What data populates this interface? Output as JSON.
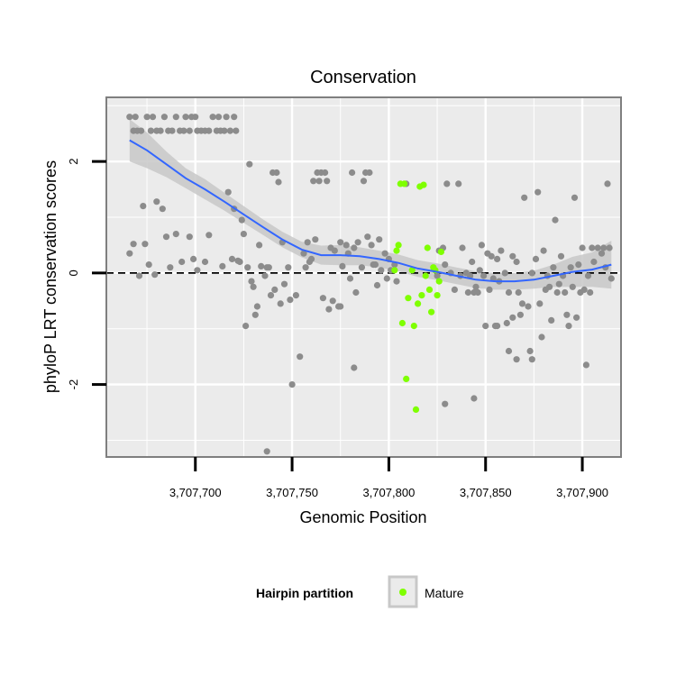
{
  "chart_data": {
    "type": "scatter",
    "title": "Conservation",
    "xlabel": "Genomic Position",
    "ylabel": "phyloP LRT conservation scores",
    "xlim": [
      3707654,
      3707920
    ],
    "ylim": [
      -3.3,
      3.15
    ],
    "x_ticks": [
      3707700,
      3707750,
      3707800,
      3707850,
      3707900
    ],
    "x_tick_labels": [
      "3,707,700",
      "3,707,750",
      "3,707,800",
      "3,707,850",
      "3,707,900"
    ],
    "y_ticks": [
      -2,
      0,
      2
    ],
    "y_tick_labels": [
      "-2",
      "0",
      "2"
    ],
    "reference_line": {
      "y": 0,
      "style": "dashed",
      "color": "#000000"
    },
    "grid": true,
    "legend": {
      "title": "Hairpin partition",
      "position": "bottom",
      "entries": [
        {
          "label": "Mature",
          "color": "#7fff00"
        }
      ]
    },
    "colors": {
      "other": "#8c8c8c",
      "mature": "#7fff00",
      "smooth": "#3366ff",
      "band": "#c8c8c8"
    },
    "series": [
      {
        "name": "Other",
        "points": [
          [
            3707666,
            2.8
          ],
          [
            3707668,
            2.55
          ],
          [
            3707669,
            2.8
          ],
          [
            3707670,
            2.55
          ],
          [
            3707672,
            2.55
          ],
          [
            3707675,
            2.8
          ],
          [
            3707677,
            2.55
          ],
          [
            3707678,
            2.8
          ],
          [
            3707680,
            2.55
          ],
          [
            3707682,
            2.55
          ],
          [
            3707684,
            2.8
          ],
          [
            3707686,
            2.55
          ],
          [
            3707688,
            2.55
          ],
          [
            3707690,
            2.8
          ],
          [
            3707692,
            2.55
          ],
          [
            3707694,
            2.55
          ],
          [
            3707695,
            2.8
          ],
          [
            3707697,
            2.55
          ],
          [
            3707698,
            2.8
          ],
          [
            3707700,
            2.8
          ],
          [
            3707701,
            2.55
          ],
          [
            3707703,
            2.55
          ],
          [
            3707705,
            2.55
          ],
          [
            3707707,
            2.55
          ],
          [
            3707709,
            2.8
          ],
          [
            3707711,
            2.55
          ],
          [
            3707712,
            2.8
          ],
          [
            3707713,
            2.55
          ],
          [
            3707715,
            2.55
          ],
          [
            3707716,
            2.8
          ],
          [
            3707718,
            2.55
          ],
          [
            3707720,
            2.8
          ],
          [
            3707721,
            2.55
          ],
          [
            3707666,
            0.35
          ],
          [
            3707668,
            0.52
          ],
          [
            3707671,
            -0.05
          ],
          [
            3707673,
            1.2
          ],
          [
            3707674,
            0.52
          ],
          [
            3707676,
            0.15
          ],
          [
            3707679,
            -0.03
          ],
          [
            3707680,
            1.28
          ],
          [
            3707683,
            1.15
          ],
          [
            3707685,
            0.65
          ],
          [
            3707687,
            0.1
          ],
          [
            3707690,
            0.7
          ],
          [
            3707693,
            0.2
          ],
          [
            3707697,
            0.65
          ],
          [
            3707699,
            0.25
          ],
          [
            3707701,
            0.05
          ],
          [
            3707705,
            0.2
          ],
          [
            3707707,
            0.68
          ],
          [
            3707714,
            0.12
          ],
          [
            3707717,
            1.45
          ],
          [
            3707719,
            0.25
          ],
          [
            3707720,
            1.15
          ],
          [
            3707722,
            0.22
          ],
          [
            3707723,
            0.2
          ],
          [
            3707724,
            0.95
          ],
          [
            3707725,
            0.7
          ],
          [
            3707726,
            -0.95
          ],
          [
            3707727,
            0.1
          ],
          [
            3707728,
            1.95
          ],
          [
            3707729,
            -0.15
          ],
          [
            3707730,
            -0.25
          ],
          [
            3707731,
            -0.75
          ],
          [
            3707732,
            -0.6
          ],
          [
            3707733,
            0.5
          ],
          [
            3707734,
            0.12
          ],
          [
            3707736,
            -0.05
          ],
          [
            3707737,
            0.1
          ],
          [
            3707738,
            0.1
          ],
          [
            3707739,
            -0.4
          ],
          [
            3707740,
            1.8
          ],
          [
            3707741,
            -0.3
          ],
          [
            3707742,
            1.8
          ],
          [
            3707743,
            1.63
          ],
          [
            3707744,
            -0.55
          ],
          [
            3707745,
            0.55
          ],
          [
            3707746,
            -0.2
          ],
          [
            3707748,
            0.1
          ],
          [
            3707749,
            -0.48
          ],
          [
            3707750,
            -2.0
          ],
          [
            3707752,
            -0.4
          ],
          [
            3707754,
            -1.5
          ],
          [
            3707756,
            0.35
          ],
          [
            3707757,
            0.1
          ],
          [
            3707758,
            0.55
          ],
          [
            3707759,
            0.2
          ],
          [
            3707760,
            0.25
          ],
          [
            3707761,
            1.65
          ],
          [
            3707762,
            0.6
          ],
          [
            3707763,
            1.8
          ],
          [
            3707764,
            1.65
          ],
          [
            3707765,
            1.8
          ],
          [
            3707766,
            -0.45
          ],
          [
            3707767,
            1.8
          ],
          [
            3707768,
            1.65
          ],
          [
            3707769,
            -0.65
          ],
          [
            3707770,
            0.45
          ],
          [
            3707771,
            -0.5
          ],
          [
            3707772,
            0.4
          ],
          [
            3707774,
            -0.6
          ],
          [
            3707775,
            0.55
          ],
          [
            3707776,
            0.12
          ],
          [
            3707778,
            0.5
          ],
          [
            3707779,
            0.35
          ],
          [
            3707780,
            -0.1
          ],
          [
            3707781,
            1.8
          ],
          [
            3707782,
            0.45
          ],
          [
            3707783,
            -0.35
          ],
          [
            3707784,
            0.55
          ],
          [
            3707786,
            0.1
          ],
          [
            3707787,
            1.65
          ],
          [
            3707788,
            1.8
          ],
          [
            3707789,
            0.65
          ],
          [
            3707790,
            1.8
          ],
          [
            3707791,
            0.5
          ],
          [
            3707792,
            0.15
          ],
          [
            3707793,
            0.15
          ],
          [
            3707794,
            -0.22
          ],
          [
            3707795,
            0.6
          ],
          [
            3707796,
            0.05
          ],
          [
            3707798,
            0.35
          ],
          [
            3707799,
            -0.1
          ],
          [
            3707800,
            0.25
          ],
          [
            3707801,
            0.05
          ],
          [
            3707803,
            0.15
          ],
          [
            3707804,
            -0.15
          ],
          [
            3707826,
            0.4
          ],
          [
            3707828,
            0.45
          ],
          [
            3707829,
            0.15
          ],
          [
            3707830,
            1.6
          ],
          [
            3707832,
            0.0
          ],
          [
            3707834,
            -0.3
          ],
          [
            3707836,
            1.6
          ],
          [
            3707837,
            -0.05
          ],
          [
            3707838,
            0.45
          ],
          [
            3707840,
            0.0
          ],
          [
            3707841,
            -0.35
          ],
          [
            3707842,
            -0.05
          ],
          [
            3707843,
            0.2
          ],
          [
            3707844,
            -0.35
          ],
          [
            3707845,
            -0.25
          ],
          [
            3707846,
            -0.35
          ],
          [
            3707847,
            0.05
          ],
          [
            3707848,
            0.5
          ],
          [
            3707849,
            -0.05
          ],
          [
            3707850,
            -0.95
          ],
          [
            3707851,
            0.35
          ],
          [
            3707852,
            -0.3
          ],
          [
            3707853,
            0.3
          ],
          [
            3707854,
            -0.1
          ],
          [
            3707855,
            -0.95
          ],
          [
            3707856,
            0.25
          ],
          [
            3707857,
            -0.15
          ],
          [
            3707858,
            0.4
          ],
          [
            3707860,
            0.0
          ],
          [
            3707861,
            -0.9
          ],
          [
            3707862,
            -0.35
          ],
          [
            3707864,
            0.3
          ],
          [
            3707866,
            0.2
          ],
          [
            3707867,
            -0.35
          ],
          [
            3707868,
            -0.75
          ],
          [
            3707870,
            1.35
          ],
          [
            3707872,
            -0.6
          ],
          [
            3707873,
            -1.4
          ],
          [
            3707874,
            0.0
          ],
          [
            3707876,
            0.25
          ],
          [
            3707877,
            1.45
          ],
          [
            3707878,
            -0.55
          ],
          [
            3707879,
            -1.15
          ],
          [
            3707880,
            0.4
          ],
          [
            3707881,
            -0.3
          ],
          [
            3707882,
            -0.05
          ],
          [
            3707883,
            -0.25
          ],
          [
            3707884,
            -0.85
          ],
          [
            3707885,
            0.1
          ],
          [
            3707886,
            0.95
          ],
          [
            3707887,
            -0.35
          ],
          [
            3707888,
            -0.2
          ],
          [
            3707889,
            0.3
          ],
          [
            3707890,
            -0.05
          ],
          [
            3707891,
            -0.35
          ],
          [
            3707892,
            -0.75
          ],
          [
            3707893,
            -0.95
          ],
          [
            3707894,
            0.1
          ],
          [
            3707895,
            -0.25
          ],
          [
            3707896,
            1.35
          ],
          [
            3707897,
            -0.8
          ],
          [
            3707898,
            0.15
          ],
          [
            3707899,
            -0.35
          ],
          [
            3707900,
            0.45
          ],
          [
            3707901,
            -0.3
          ],
          [
            3707902,
            -1.65
          ],
          [
            3707903,
            -0.05
          ],
          [
            3707904,
            -0.35
          ],
          [
            3707905,
            0.45
          ],
          [
            3707906,
            0.2
          ],
          [
            3707908,
            0.45
          ],
          [
            3707910,
            0.35
          ],
          [
            3707911,
            0.45
          ],
          [
            3707912,
            0.1
          ],
          [
            3707913,
            1.6
          ],
          [
            3707914,
            0.45
          ],
          [
            3707915,
            -0.1
          ],
          [
            3707737,
            -3.2
          ],
          [
            3707775,
            -0.6
          ],
          [
            3707782,
            -1.7
          ],
          [
            3707809,
            1.6
          ],
          [
            3707825,
            -0.05
          ],
          [
            3707829,
            -2.35
          ],
          [
            3707844,
            -2.25
          ],
          [
            3707856,
            -0.95
          ],
          [
            3707862,
            -1.4
          ],
          [
            3707864,
            -0.8
          ],
          [
            3707866,
            -1.55
          ],
          [
            3707869,
            -0.55
          ],
          [
            3707874,
            -1.55
          ]
        ]
      },
      {
        "name": "Mature",
        "points": [
          [
            3707803,
            0.05
          ],
          [
            3707804,
            0.4
          ],
          [
            3707805,
            0.5
          ],
          [
            3707806,
            1.6
          ],
          [
            3707807,
            -0.9
          ],
          [
            3707808,
            1.6
          ],
          [
            3707809,
            -1.9
          ],
          [
            3707810,
            -0.45
          ],
          [
            3707812,
            0.05
          ],
          [
            3707813,
            -0.95
          ],
          [
            3707814,
            -2.45
          ],
          [
            3707815,
            -0.55
          ],
          [
            3707816,
            1.55
          ],
          [
            3707817,
            -0.4
          ],
          [
            3707818,
            1.58
          ],
          [
            3707819,
            -0.05
          ],
          [
            3707820,
            0.45
          ],
          [
            3707821,
            -0.3
          ],
          [
            3707822,
            -0.7
          ],
          [
            3707823,
            0.1
          ],
          [
            3707824,
            0.05
          ],
          [
            3707825,
            -0.4
          ],
          [
            3707826,
            -0.15
          ],
          [
            3707827,
            0.38
          ]
        ]
      }
    ],
    "smooth": {
      "x": [
        3707666,
        3707675,
        3707685,
        3707695,
        3707705,
        3707715,
        3707725,
        3707735,
        3707745,
        3707755,
        3707765,
        3707775,
        3707785,
        3707795,
        3707805,
        3707815,
        3707825,
        3707835,
        3707845,
        3707855,
        3707865,
        3707875,
        3707885,
        3707895,
        3707905,
        3707915
      ],
      "y": [
        2.38,
        2.2,
        1.95,
        1.7,
        1.5,
        1.28,
        1.05,
        0.82,
        0.6,
        0.42,
        0.32,
        0.32,
        0.3,
        0.25,
        0.18,
        0.08,
        0.02,
        -0.05,
        -0.12,
        -0.15,
        -0.15,
        -0.12,
        -0.05,
        0.02,
        0.06,
        0.15
      ],
      "lower": [
        2.0,
        1.88,
        1.72,
        1.52,
        1.32,
        1.12,
        0.9,
        0.68,
        0.46,
        0.28,
        0.15,
        0.14,
        0.14,
        0.1,
        0.03,
        -0.07,
        -0.13,
        -0.2,
        -0.27,
        -0.3,
        -0.3,
        -0.28,
        -0.25,
        -0.25,
        -0.25,
        -0.28
      ],
      "upper": [
        2.76,
        2.52,
        2.18,
        1.88,
        1.68,
        1.44,
        1.2,
        0.96,
        0.74,
        0.56,
        0.49,
        0.5,
        0.46,
        0.4,
        0.33,
        0.23,
        0.17,
        0.1,
        0.03,
        0.0,
        0.0,
        0.04,
        0.15,
        0.29,
        0.37,
        0.58
      ]
    }
  }
}
